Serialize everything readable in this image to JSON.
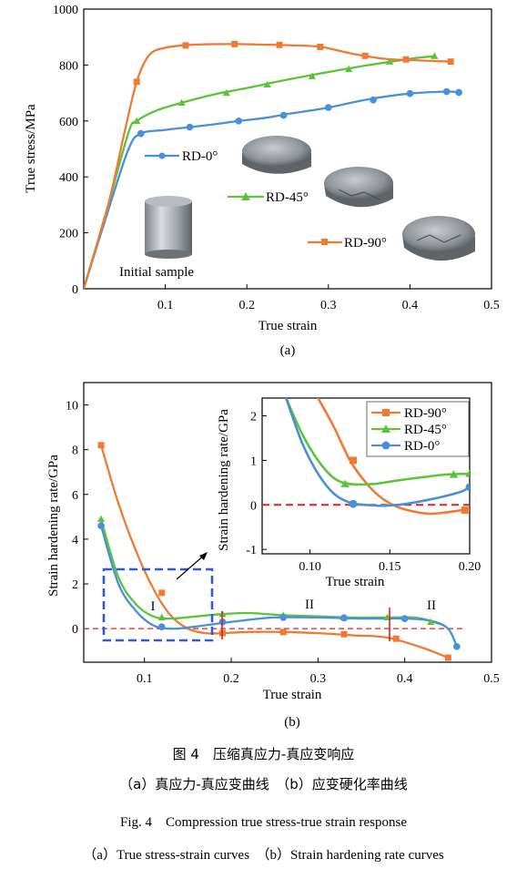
{
  "chart_data": [
    {
      "type": "line",
      "panel_label": "(a)",
      "xlabel": "True strain",
      "ylabel": "True stress/MPa",
      "xlim": [
        0,
        0.5
      ],
      "ylim": [
        0,
        1000
      ],
      "xticks": [
        "0.1",
        "0.2",
        "0.3",
        "0.4",
        "0.5"
      ],
      "yticks": [
        "0",
        "200",
        "400",
        "600",
        "800",
        "1000"
      ],
      "series": [
        {
          "name": "RD-0°",
          "color": "#4a90d9",
          "marker": "circle",
          "x": [
            0.0,
            0.03,
            0.055,
            0.07,
            0.1,
            0.13,
            0.16,
            0.19,
            0.22,
            0.25,
            0.3,
            0.35,
            0.4,
            0.445,
            0.46
          ],
          "y": [
            0,
            280,
            500,
            555,
            568,
            578,
            588,
            600,
            610,
            625,
            648,
            678,
            698,
            705,
            702
          ],
          "marker_x": [
            0.07,
            0.13,
            0.19,
            0.245,
            0.3,
            0.355,
            0.4,
            0.445,
            0.46
          ],
          "marker_y": [
            555,
            578,
            600,
            620,
            648,
            675,
            698,
            705,
            702
          ]
        },
        {
          "name": "RD-45°",
          "color": "#5cc43c",
          "marker": "triangle",
          "x": [
            0.0,
            0.03,
            0.055,
            0.065,
            0.09,
            0.12,
            0.16,
            0.2,
            0.25,
            0.3,
            0.35,
            0.4,
            0.43
          ],
          "y": [
            0,
            300,
            560,
            600,
            638,
            665,
            695,
            718,
            748,
            775,
            800,
            822,
            832
          ],
          "marker_x": [
            0.065,
            0.12,
            0.175,
            0.225,
            0.28,
            0.325,
            0.375,
            0.43
          ],
          "marker_y": [
            600,
            665,
            700,
            730,
            760,
            785,
            812,
            832
          ]
        },
        {
          "name": "RD-90°",
          "color": "#ef7a33",
          "marker": "square",
          "x": [
            0.0,
            0.03,
            0.05,
            0.065,
            0.08,
            0.1,
            0.13,
            0.18,
            0.22,
            0.25,
            0.29,
            0.33,
            0.37,
            0.4,
            0.45
          ],
          "y": [
            0,
            300,
            560,
            740,
            835,
            862,
            872,
            875,
            873,
            871,
            865,
            840,
            822,
            818,
            812
          ],
          "marker_x": [
            0.065,
            0.125,
            0.185,
            0.24,
            0.29,
            0.345,
            0.395,
            0.45
          ],
          "marker_y": [
            740,
            870,
            875,
            872,
            865,
            833,
            820,
            812
          ]
        }
      ],
      "annotations": [
        "Initial sample"
      ]
    },
    {
      "type": "line",
      "panel_label": "(b)",
      "xlabel": "True strain",
      "ylabel": "Strain hardening rate/GPa",
      "xlim": [
        0.03,
        0.5
      ],
      "ylim": [
        -1.5,
        11
      ],
      "xticks": [
        "0.1",
        "0.2",
        "0.3",
        "0.4",
        "0.5"
      ],
      "yticks": [
        "-0",
        "0",
        "2",
        "4",
        "6",
        "8",
        "10"
      ],
      "reference_line_y": 0,
      "region_labels": [
        "I",
        "II",
        "II"
      ],
      "series": [
        {
          "name": "RD-90°",
          "color": "#ef7a33",
          "marker": "square",
          "x": [
            0.05,
            0.07,
            0.09,
            0.11,
            0.13,
            0.15,
            0.17,
            0.19,
            0.22,
            0.26,
            0.3,
            0.34,
            0.38,
            0.42,
            0.45
          ],
          "y": [
            8.2,
            5.6,
            3.5,
            1.8,
            0.6,
            0.0,
            -0.2,
            -0.2,
            -0.15,
            -0.15,
            -0.2,
            -0.3,
            -0.4,
            -0.85,
            -1.3
          ],
          "marker_x": [
            0.05,
            0.12,
            0.19,
            0.26,
            0.33,
            0.39,
            0.45
          ],
          "marker_y": [
            8.2,
            1.6,
            -0.2,
            -0.15,
            -0.25,
            -0.45,
            -1.3
          ]
        },
        {
          "name": "RD-45°",
          "color": "#5cc43c",
          "marker": "triangle",
          "x": [
            0.05,
            0.07,
            0.09,
            0.11,
            0.13,
            0.16,
            0.19,
            0.22,
            0.26,
            0.3,
            0.34,
            0.38,
            0.41,
            0.43,
            0.44
          ],
          "y": [
            4.9,
            2.3,
            1.1,
            0.55,
            0.45,
            0.55,
            0.65,
            0.7,
            0.6,
            0.55,
            0.5,
            0.5,
            0.5,
            0.35,
            0.2
          ],
          "marker_x": [
            0.05,
            0.12,
            0.19,
            0.26,
            0.33,
            0.38,
            0.43
          ],
          "marker_y": [
            4.9,
            0.5,
            0.65,
            0.6,
            0.5,
            0.5,
            0.3
          ]
        },
        {
          "name": "RD-0°",
          "color": "#4a90d9",
          "marker": "circle",
          "x": [
            0.05,
            0.07,
            0.09,
            0.11,
            0.13,
            0.15,
            0.18,
            0.21,
            0.25,
            0.3,
            0.35,
            0.4,
            0.43,
            0.45,
            0.46
          ],
          "y": [
            4.6,
            2.0,
            0.8,
            0.15,
            0.0,
            0.05,
            0.2,
            0.35,
            0.5,
            0.5,
            0.45,
            0.45,
            0.35,
            0.0,
            -0.8
          ],
          "marker_x": [
            0.05,
            0.12,
            0.19,
            0.26,
            0.33,
            0.4,
            0.46
          ],
          "marker_y": [
            4.6,
            0.08,
            0.3,
            0.5,
            0.48,
            0.45,
            -0.8
          ]
        }
      ]
    },
    {
      "type": "line",
      "panel_label": "inset",
      "xlabel": "True strain",
      "ylabel": "Strain hardening rate/GPa",
      "xlim": [
        0.07,
        0.2
      ],
      "ylim": [
        -1.1,
        2.4
      ],
      "xticks": [
        "0.10",
        "0.15",
        "0.20"
      ],
      "yticks": [
        "-1",
        "0",
        "1",
        "2"
      ],
      "reference_line_y": 0,
      "series": [
        {
          "name": "RD-90°",
          "color": "#ef7a33",
          "marker": "square",
          "x": [
            0.105,
            0.115,
            0.125,
            0.135,
            0.145,
            0.155,
            0.165,
            0.175,
            0.185,
            0.195,
            0.2
          ],
          "y": [
            2.4,
            1.75,
            1.0,
            0.5,
            0.15,
            -0.05,
            -0.15,
            -0.2,
            -0.17,
            -0.12,
            -0.1
          ],
          "marker_x": [
            0.127,
            0.197
          ],
          "marker_y": [
            1.0,
            -0.12
          ]
        },
        {
          "name": "RD-45°",
          "color": "#5cc43c",
          "marker": "triangle",
          "x": [
            0.085,
            0.095,
            0.105,
            0.115,
            0.125,
            0.14,
            0.155,
            0.17,
            0.185,
            0.2
          ],
          "y": [
            2.4,
            1.6,
            1.0,
            0.6,
            0.47,
            0.47,
            0.55,
            0.62,
            0.68,
            0.7
          ],
          "marker_x": [
            0.122,
            0.19,
            0.2
          ],
          "marker_y": [
            0.47,
            0.68,
            0.7
          ]
        },
        {
          "name": "RD-0°",
          "color": "#4a90d9",
          "marker": "circle",
          "x": [
            0.085,
            0.095,
            0.105,
            0.115,
            0.125,
            0.135,
            0.145,
            0.155,
            0.165,
            0.175,
            0.185,
            0.195,
            0.2
          ],
          "y": [
            2.4,
            1.4,
            0.7,
            0.25,
            0.05,
            0.0,
            -0.02,
            0.0,
            0.05,
            0.12,
            0.2,
            0.3,
            0.4
          ],
          "marker_x": [
            0.127,
            0.2
          ],
          "marker_y": [
            0.02,
            0.4
          ]
        }
      ]
    }
  ],
  "captions": {
    "figure_cn": "图 4　压缩真应力-真应变响应",
    "sub_cn": "（a）真应力-真应变曲线　（b）应变硬化率曲线",
    "figure_en": "Fig. 4　Compression true stress-true strain response",
    "sub_en": "（a）True stress-strain curves　（b）Strain hardening rate curves"
  }
}
